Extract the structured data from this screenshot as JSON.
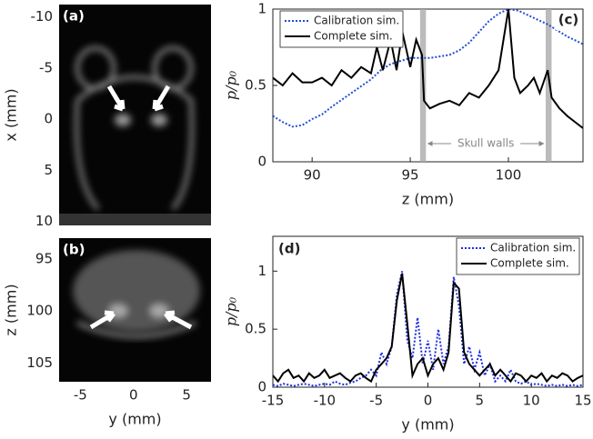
{
  "chart_data": [
    {
      "type": "image",
      "panel_label": "(a)",
      "ylabel": "x (mm)",
      "ylim": [
        10.4,
        -11.2
      ],
      "yticks": [
        -10,
        -5,
        0,
        5,
        10
      ]
    },
    {
      "type": "image",
      "panel_label": "(b)",
      "ylabel": "z (mm)",
      "xlabel": "y (mm)",
      "ylim": [
        106.8,
        93
      ],
      "yticks": [
        95,
        100,
        105
      ],
      "xlim": [
        -7,
        7.3
      ],
      "xticks": [
        -5,
        0,
        5
      ]
    },
    {
      "type": "line",
      "panel_label": "(c)",
      "xlabel": "z (mm)",
      "ylabel": "p/p₀",
      "xlim": [
        88,
        103.8
      ],
      "ylim": [
        0,
        1
      ],
      "xticks": [
        90,
        95,
        100
      ],
      "yticks": [
        0,
        0.5,
        1
      ],
      "legend": "upper left",
      "shaded_regions": [
        [
          95.5,
          95.8
        ],
        [
          101.9,
          102.2
        ]
      ],
      "annotation": "Skull walls",
      "series": [
        {
          "name": "Calibration sim.",
          "color": "#1f4fd1",
          "style": "dotted",
          "x": [
            88,
            88.5,
            89,
            89.5,
            90,
            90.5,
            91,
            92,
            93,
            93.5,
            94,
            95,
            96,
            97,
            97.5,
            98,
            98.5,
            99,
            99.5,
            100,
            100.5,
            101,
            101.5,
            102,
            102.5,
            103,
            103.5,
            103.8
          ],
          "values": [
            0.3,
            0.26,
            0.23,
            0.24,
            0.28,
            0.31,
            0.36,
            0.45,
            0.54,
            0.6,
            0.64,
            0.68,
            0.68,
            0.7,
            0.73,
            0.78,
            0.85,
            0.92,
            0.97,
            1.0,
            0.99,
            0.96,
            0.93,
            0.9,
            0.86,
            0.82,
            0.79,
            0.77
          ]
        },
        {
          "name": "Complete sim.",
          "color": "#000000",
          "style": "solid",
          "x": [
            88,
            88.5,
            89,
            89.5,
            90,
            90.5,
            91,
            91.5,
            92,
            92.5,
            93,
            93.3,
            93.6,
            94,
            94.3,
            94.6,
            95,
            95.3,
            95.6,
            95.7,
            96,
            96.5,
            97,
            97.5,
            98,
            98.5,
            99,
            99.5,
            100,
            100.3,
            100.6,
            101,
            101.3,
            101.6,
            102,
            102.2,
            102.6,
            103,
            103.5,
            103.8
          ],
          "values": [
            0.55,
            0.5,
            0.58,
            0.52,
            0.52,
            0.55,
            0.5,
            0.6,
            0.55,
            0.62,
            0.58,
            0.75,
            0.6,
            0.8,
            0.6,
            0.85,
            0.62,
            0.8,
            0.7,
            0.4,
            0.35,
            0.38,
            0.4,
            0.37,
            0.45,
            0.42,
            0.5,
            0.6,
            1.0,
            0.55,
            0.45,
            0.5,
            0.55,
            0.45,
            0.6,
            0.42,
            0.35,
            0.3,
            0.25,
            0.22
          ]
        }
      ]
    },
    {
      "type": "line",
      "panel_label": "(d)",
      "xlabel": "y (mm)",
      "ylabel": "p/p₀",
      "xlim": [
        -15,
        15
      ],
      "ylim": [
        0,
        1.3
      ],
      "xticks": [
        -15,
        -10,
        -5,
        0,
        5,
        10,
        15
      ],
      "yticks": [
        0,
        0.5,
        1
      ],
      "legend": "upper right",
      "x": [
        -15,
        -14.5,
        -14,
        -13.5,
        -13,
        -12.5,
        -12,
        -11.5,
        -11,
        -10.5,
        -10,
        -9.5,
        -9,
        -8.5,
        -8,
        -7.5,
        -7,
        -6.5,
        -6,
        -5.5,
        -5,
        -4.5,
        -4,
        -3.5,
        -3,
        -2.5,
        -2,
        -1.5,
        -1,
        -0.5,
        0,
        0.5,
        1,
        1.5,
        2,
        2.5,
        3,
        3.5,
        4,
        4.5,
        5,
        5.5,
        6,
        6.5,
        7,
        7.5,
        8,
        8.5,
        9,
        9.5,
        10,
        10.5,
        11,
        11.5,
        12,
        12.5,
        13,
        13.5,
        14,
        14.5,
        15
      ],
      "series": [
        {
          "name": "Calibration sim.",
          "color": "#1f2fe0",
          "style": "dotted",
          "values": [
            0.02,
            0.01,
            0.03,
            0.02,
            0.01,
            0.02,
            0.03,
            0.02,
            0.01,
            0.02,
            0.03,
            0.02,
            0.05,
            0.03,
            0.02,
            0.04,
            0.05,
            0.08,
            0.1,
            0.15,
            0.1,
            0.3,
            0.2,
            0.35,
            0.8,
            1.0,
            0.4,
            0.25,
            0.6,
            0.2,
            0.4,
            0.15,
            0.5,
            0.2,
            0.35,
            0.95,
            0.7,
            0.2,
            0.35,
            0.15,
            0.3,
            0.1,
            0.2,
            0.05,
            0.1,
            0.05,
            0.15,
            0.05,
            0.03,
            0.05,
            0.02,
            0.03,
            0.02,
            0.01,
            0.02,
            0.01,
            0.02,
            0.01,
            0.02,
            0.01,
            0.02
          ]
        },
        {
          "name": "Complete sim.",
          "color": "#000000",
          "style": "solid",
          "values": [
            0.1,
            0.05,
            0.12,
            0.15,
            0.08,
            0.1,
            0.05,
            0.12,
            0.08,
            0.1,
            0.15,
            0.08,
            0.1,
            0.12,
            0.08,
            0.05,
            0.1,
            0.12,
            0.08,
            0.05,
            0.15,
            0.2,
            0.25,
            0.35,
            0.75,
            0.98,
            0.55,
            0.1,
            0.2,
            0.25,
            0.1,
            0.2,
            0.25,
            0.15,
            0.3,
            0.9,
            0.85,
            0.3,
            0.2,
            0.15,
            0.1,
            0.15,
            0.2,
            0.1,
            0.15,
            0.1,
            0.05,
            0.12,
            0.1,
            0.05,
            0.1,
            0.08,
            0.12,
            0.05,
            0.1,
            0.08,
            0.12,
            0.1,
            0.05,
            0.08,
            0.1
          ]
        }
      ]
    }
  ]
}
